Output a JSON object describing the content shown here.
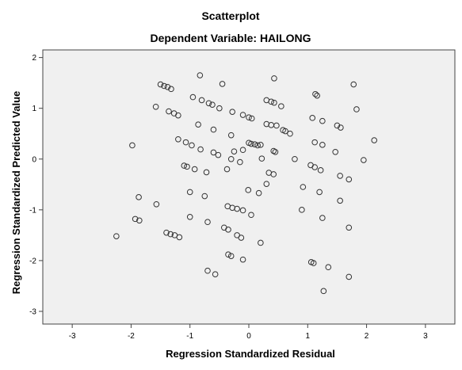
{
  "chart_data": {
    "type": "scatter",
    "title": "Scatterplot",
    "subtitle": "Dependent Variable: HAILONG",
    "xlabel": "Regression Standardized Residual",
    "ylabel": "Regression Standardized Predicted Value",
    "xlim": [
      -3.5,
      3.5
    ],
    "ylim": [
      -3.25,
      2.15
    ],
    "xticks": [
      "-3",
      "-2",
      "-1",
      "0",
      "1",
      "2",
      "3"
    ],
    "yticks": [
      "-3",
      "-2",
      "-1",
      "0",
      "1",
      "2"
    ],
    "grid": false,
    "legend": "none",
    "colors": {
      "background": "#ffffff",
      "plot_background": "#f0f0f0",
      "marker_edge": "#333333"
    },
    "points": [
      [
        -0.83,
        1.65
      ],
      [
        -0.45,
        1.48
      ],
      [
        -1.5,
        1.47
      ],
      [
        -1.44,
        1.44
      ],
      [
        -1.38,
        1.42
      ],
      [
        -1.32,
        1.38
      ],
      [
        -0.95,
        1.22
      ],
      [
        -0.8,
        1.16
      ],
      [
        -0.68,
        1.1
      ],
      [
        -0.62,
        1.07
      ],
      [
        -0.5,
        1.0
      ],
      [
        -1.58,
        1.03
      ],
      [
        -1.36,
        0.94
      ],
      [
        -1.27,
        0.9
      ],
      [
        -1.2,
        0.86
      ],
      [
        -0.28,
        0.93
      ],
      [
        -0.1,
        0.87
      ],
      [
        0.0,
        0.82
      ],
      [
        0.05,
        0.8
      ],
      [
        0.43,
        1.59
      ],
      [
        0.3,
        1.16
      ],
      [
        0.38,
        1.13
      ],
      [
        0.43,
        1.11
      ],
      [
        0.55,
        1.04
      ],
      [
        1.13,
        1.28
      ],
      [
        1.16,
        1.25
      ],
      [
        1.78,
        1.47
      ],
      [
        1.83,
        0.98
      ],
      [
        0.3,
        0.69
      ],
      [
        0.38,
        0.67
      ],
      [
        0.47,
        0.66
      ],
      [
        0.58,
        0.57
      ],
      [
        0.62,
        0.55
      ],
      [
        0.7,
        0.5
      ],
      [
        1.08,
        0.81
      ],
      [
        1.25,
        0.75
      ],
      [
        1.5,
        0.66
      ],
      [
        1.56,
        0.62
      ],
      [
        -0.86,
        0.68
      ],
      [
        -0.6,
        0.58
      ],
      [
        -1.2,
        0.39
      ],
      [
        -1.07,
        0.33
      ],
      [
        -0.97,
        0.27
      ],
      [
        -0.82,
        0.19
      ],
      [
        -0.6,
        0.13
      ],
      [
        -0.52,
        0.08
      ],
      [
        -0.3,
        0.47
      ],
      [
        -0.25,
        0.15
      ],
      [
        -0.1,
        0.18
      ],
      [
        0.0,
        0.32
      ],
      [
        0.04,
        0.3
      ],
      [
        0.1,
        0.29
      ],
      [
        0.15,
        0.27
      ],
      [
        0.2,
        0.28
      ],
      [
        0.42,
        0.16
      ],
      [
        0.45,
        0.14
      ],
      [
        0.22,
        0.01
      ],
      [
        -0.15,
        -0.06
      ],
      [
        -0.3,
        0.0
      ],
      [
        -1.98,
        0.27
      ],
      [
        1.12,
        0.33
      ],
      [
        1.25,
        0.28
      ],
      [
        1.47,
        0.14
      ],
      [
        1.95,
        -0.02
      ],
      [
        2.13,
        0.37
      ],
      [
        0.78,
        0.0
      ],
      [
        -1.1,
        -0.13
      ],
      [
        -1.05,
        -0.15
      ],
      [
        -0.92,
        -0.2
      ],
      [
        -0.72,
        -0.26
      ],
      [
        -0.37,
        -0.2
      ],
      [
        0.34,
        -0.27
      ],
      [
        0.42,
        -0.3
      ],
      [
        0.3,
        -0.49
      ],
      [
        1.05,
        -0.12
      ],
      [
        1.12,
        -0.16
      ],
      [
        1.22,
        -0.22
      ],
      [
        1.55,
        -0.33
      ],
      [
        1.7,
        -0.4
      ],
      [
        0.92,
        -0.55
      ],
      [
        1.2,
        -0.65
      ],
      [
        -0.01,
        -0.61
      ],
      [
        0.17,
        -0.67
      ],
      [
        -1.0,
        -0.65
      ],
      [
        -0.75,
        -0.73
      ],
      [
        -1.87,
        -0.75
      ],
      [
        -1.57,
        -0.89
      ],
      [
        -0.36,
        -0.93
      ],
      [
        -0.28,
        -0.96
      ],
      [
        -0.2,
        -0.98
      ],
      [
        -0.1,
        -1.01
      ],
      [
        0.04,
        -1.1
      ],
      [
        -1.0,
        -1.14
      ],
      [
        -0.7,
        -1.24
      ],
      [
        -1.93,
        -1.18
      ],
      [
        -1.86,
        -1.21
      ],
      [
        1.55,
        -0.82
      ],
      [
        0.9,
        -1.0
      ],
      [
        1.25,
        -1.16
      ],
      [
        1.7,
        -1.35
      ],
      [
        -2.25,
        -1.52
      ],
      [
        -1.4,
        -1.45
      ],
      [
        -1.33,
        -1.48
      ],
      [
        -1.26,
        -1.5
      ],
      [
        -1.18,
        -1.54
      ],
      [
        -0.42,
        -1.35
      ],
      [
        -0.35,
        -1.39
      ],
      [
        -0.2,
        -1.5
      ],
      [
        -0.13,
        -1.55
      ],
      [
        0.2,
        -1.65
      ],
      [
        -0.35,
        -1.88
      ],
      [
        -0.3,
        -1.91
      ],
      [
        -0.1,
        -1.98
      ],
      [
        -0.7,
        -2.2
      ],
      [
        -0.57,
        -2.27
      ],
      [
        1.06,
        -2.03
      ],
      [
        1.1,
        -2.05
      ],
      [
        1.35,
        -2.13
      ],
      [
        1.7,
        -2.32
      ],
      [
        1.27,
        -2.6
      ]
    ]
  }
}
